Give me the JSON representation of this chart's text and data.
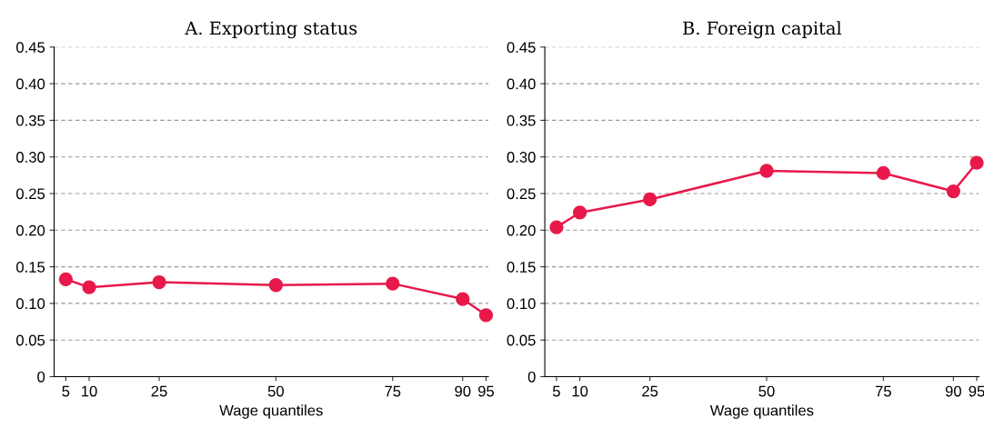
{
  "chart_data": [
    {
      "type": "line",
      "title": "A. Exporting status",
      "xlabel": "Wage quantiles",
      "x": [
        5,
        10,
        25,
        50,
        75,
        90,
        95
      ],
      "series": [
        {
          "color": "#e8194a",
          "values": [
            0.133,
            0.122,
            0.129,
            0.125,
            0.127,
            0.106,
            0.084
          ]
        }
      ],
      "xlim": [
        2.5,
        95.5
      ],
      "xticks": [
        5,
        10,
        25,
        50,
        75,
        90,
        95
      ],
      "ylim": [
        0,
        0.45
      ],
      "yticks": [
        {
          "value": 0,
          "label": "0"
        },
        {
          "value": 0.05,
          "label": "0.05"
        },
        {
          "value": 0.1,
          "label": "0.10"
        },
        {
          "value": 0.15,
          "label": "0.15"
        },
        {
          "value": 0.2,
          "label": "0.20"
        },
        {
          "value": 0.25,
          "label": "0.25"
        },
        {
          "value": 0.3,
          "label": "0.30"
        },
        {
          "value": 0.35,
          "label": "0.35"
        },
        {
          "value": 0.4,
          "label": "0.40"
        },
        {
          "value": 0.45,
          "label": "0.45"
        }
      ],
      "grid": "y",
      "marker": "circle",
      "line_style": "solid"
    },
    {
      "type": "line",
      "title": "B. Foreign capital",
      "xlabel": "Wage quantiles",
      "x": [
        5,
        10,
        25,
        50,
        75,
        90,
        95
      ],
      "series": [
        {
          "color": "#e8194a",
          "values": [
            0.204,
            0.224,
            0.242,
            0.281,
            0.278,
            0.253,
            0.292
          ]
        }
      ],
      "xlim": [
        2.5,
        95.5
      ],
      "xticks": [
        5,
        10,
        25,
        50,
        75,
        90,
        95
      ],
      "ylim": [
        0,
        0.45
      ],
      "yticks": [
        {
          "value": 0,
          "label": "0"
        },
        {
          "value": 0.05,
          "label": "0.05"
        },
        {
          "value": 0.1,
          "label": "0.10"
        },
        {
          "value": 0.15,
          "label": "0.15"
        },
        {
          "value": 0.2,
          "label": "0.20"
        },
        {
          "value": 0.25,
          "label": "0.25"
        },
        {
          "value": 0.3,
          "label": "0.30"
        },
        {
          "value": 0.35,
          "label": "0.35"
        },
        {
          "value": 0.4,
          "label": "0.40"
        },
        {
          "value": 0.45,
          "label": "0.45"
        }
      ],
      "grid": "y",
      "marker": "circle",
      "line_style": "solid"
    }
  ]
}
